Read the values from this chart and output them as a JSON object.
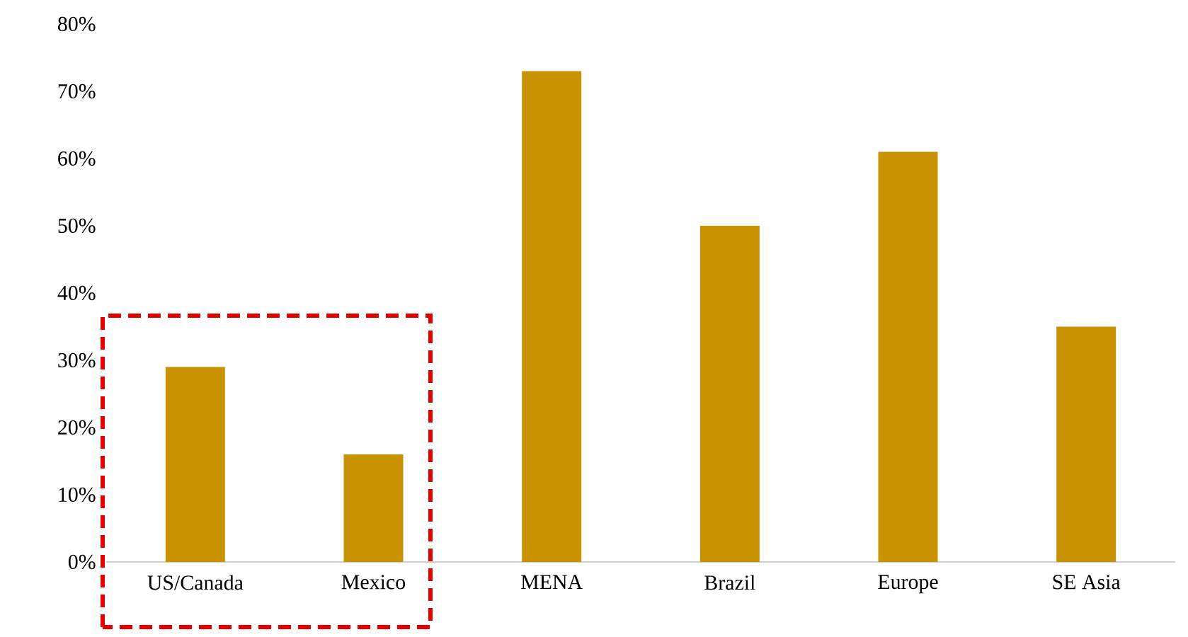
{
  "chart_data": {
    "type": "bar",
    "categories": [
      "US/Canada",
      "Mexico",
      "MENA",
      "Brazil",
      "Europe",
      "SE Asia"
    ],
    "values": [
      29,
      16,
      73,
      50,
      61,
      35
    ],
    "color": "#c89200",
    "ylim": [
      0,
      80
    ],
    "yticks": [
      {
        "value": 0,
        "label": "0%"
      },
      {
        "value": 10,
        "label": "10%"
      },
      {
        "value": 20,
        "label": "20%"
      },
      {
        "value": 30,
        "label": "30%"
      },
      {
        "value": 40,
        "label": "40%"
      },
      {
        "value": 50,
        "label": "50%"
      },
      {
        "value": 60,
        "label": "60%"
      },
      {
        "value": 70,
        "label": "70%"
      },
      {
        "value": 80,
        "label": "80%"
      }
    ]
  }
}
